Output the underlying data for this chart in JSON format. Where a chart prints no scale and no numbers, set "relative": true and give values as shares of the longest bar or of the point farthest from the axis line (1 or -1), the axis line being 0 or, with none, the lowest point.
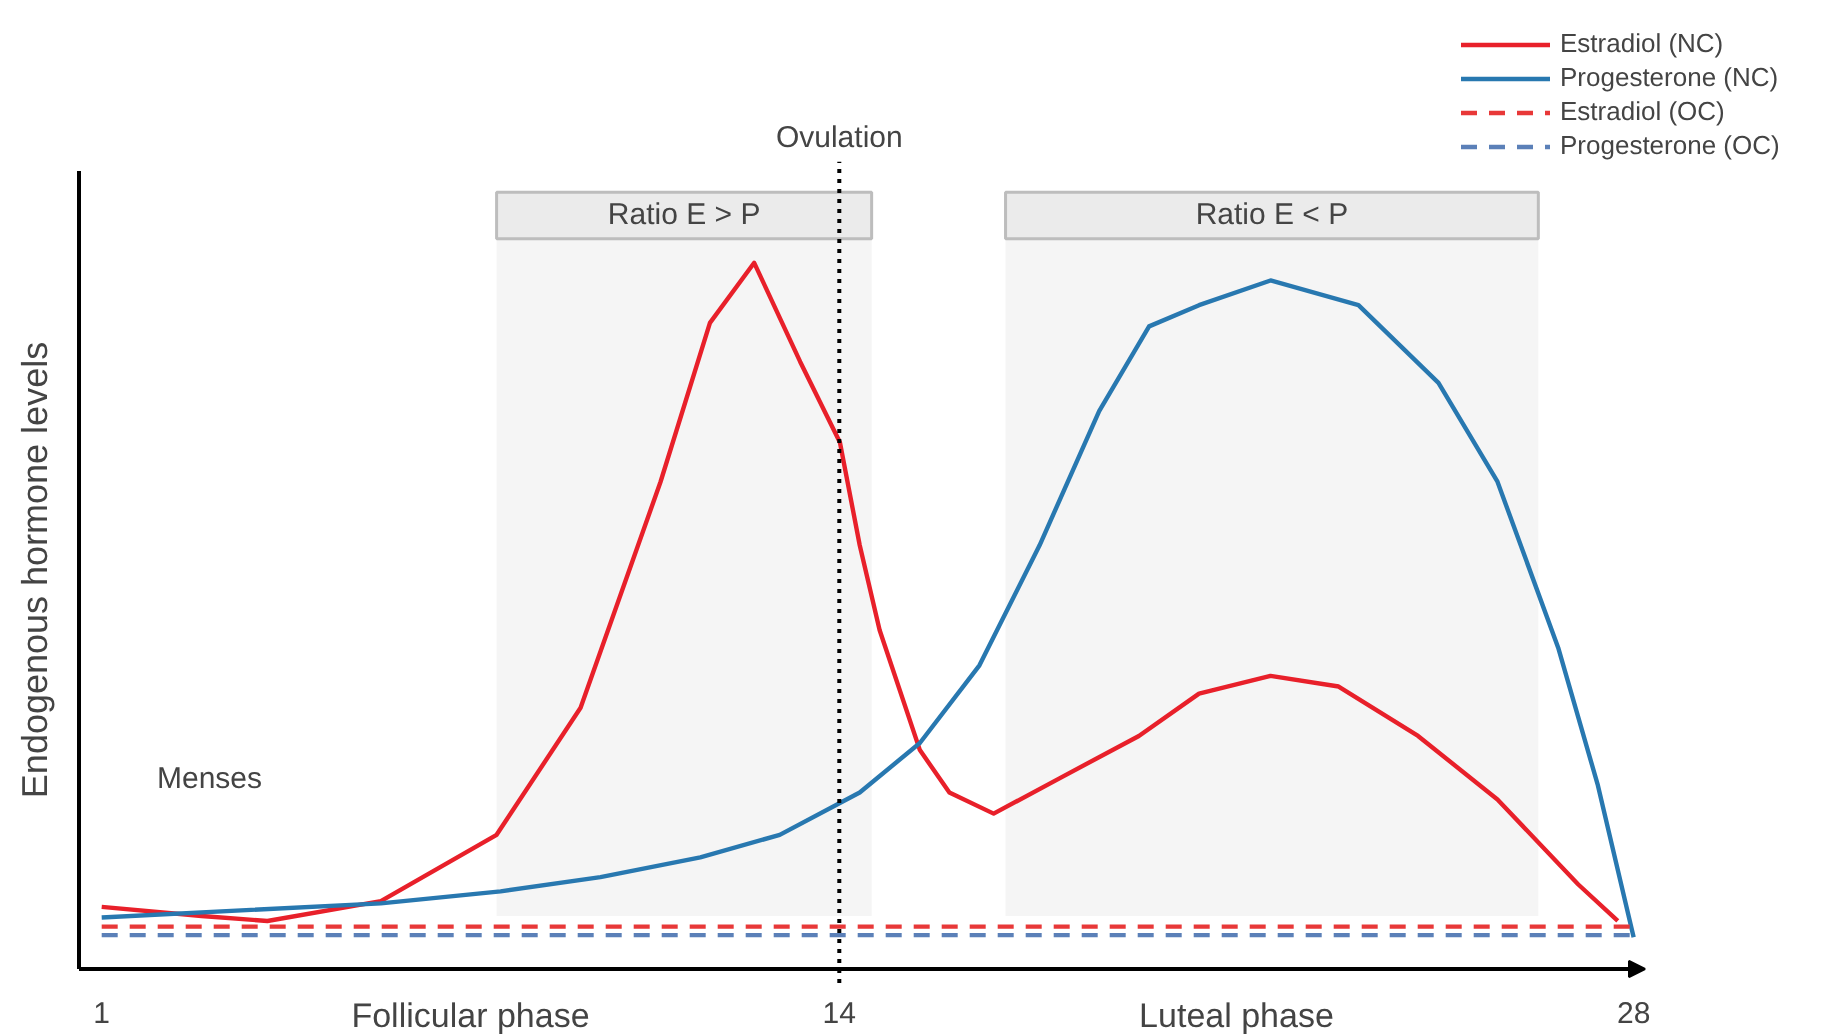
{
  "chart_data": {
    "type": "line",
    "relative": true,
    "ylabel": "Endogenous hormone levels",
    "xlim": [
      0.6,
      28.2
    ],
    "xticks": [
      1,
      14,
      28
    ],
    "grid": false,
    "legend": "top right",
    "series": [
      {
        "name": "Estradiol (NC)",
        "color": "#e8202a",
        "line_style": "solid",
        "x": [
          1.0,
          2.76,
          3.92,
          5.92,
          7.96,
          9.44,
          10.85,
          11.72,
          12.5,
          13.31,
          14.01,
          14.36,
          14.71,
          15.42,
          15.94,
          16.72,
          17.88,
          19.28,
          20.34,
          21.6,
          22.8,
          24.2,
          25.6,
          27.02,
          27.72
        ],
        "values": [
          0.088,
          0.075,
          0.068,
          0.096,
          0.19,
          0.37,
          0.69,
          0.915,
          1.0,
          0.86,
          0.746,
          0.6,
          0.48,
          0.31,
          0.25,
          0.22,
          0.27,
          0.33,
          0.39,
          0.415,
          0.4,
          0.33,
          0.24,
          0.12,
          0.068
        ]
      },
      {
        "name": "Progesterone (NC)",
        "color": "#2878b0",
        "line_style": "solid",
        "x": [
          1.0,
          5.92,
          8.03,
          9.79,
          11.55,
          12.95,
          14.36,
          15.42,
          16.47,
          17.53,
          18.58,
          19.46,
          20.34,
          21.6,
          23.15,
          24.56,
          25.6,
          26.67,
          27.37,
          28.0
        ],
        "values": [
          0.073,
          0.093,
          0.11,
          0.13,
          0.158,
          0.19,
          0.25,
          0.32,
          0.43,
          0.6,
          0.79,
          0.91,
          0.94,
          0.975,
          0.94,
          0.83,
          0.69,
          0.455,
          0.26,
          0.045
        ]
      },
      {
        "name": "Estradiol (OC)",
        "color": "#e83838",
        "line_style": "dashed",
        "x": [
          1.0,
          28.0
        ],
        "values": [
          0.06,
          0.06
        ]
      },
      {
        "name": "Progesterone (OC)",
        "color": "#5b80b8",
        "line_style": "dashed",
        "x": [
          1.0,
          28.0
        ],
        "values": [
          0.048,
          0.048
        ]
      }
    ],
    "ref_lines": [
      {
        "axis": "x",
        "value": 14,
        "label": "Ovulation",
        "color": "#000000",
        "line_style": "dotted"
      }
    ],
    "bands": [
      {
        "axis": "x",
        "from": 7.96,
        "to": 14.57,
        "label": "Ratio E > P",
        "color": "#f5f5f5"
      },
      {
        "axis": "x",
        "from": 16.93,
        "to": 26.32,
        "label": "Ratio E < P",
        "color": "#f5f5f5"
      }
    ],
    "annotations": [
      "Follicular phase",
      "Luteal phase",
      "Menses"
    ]
  }
}
